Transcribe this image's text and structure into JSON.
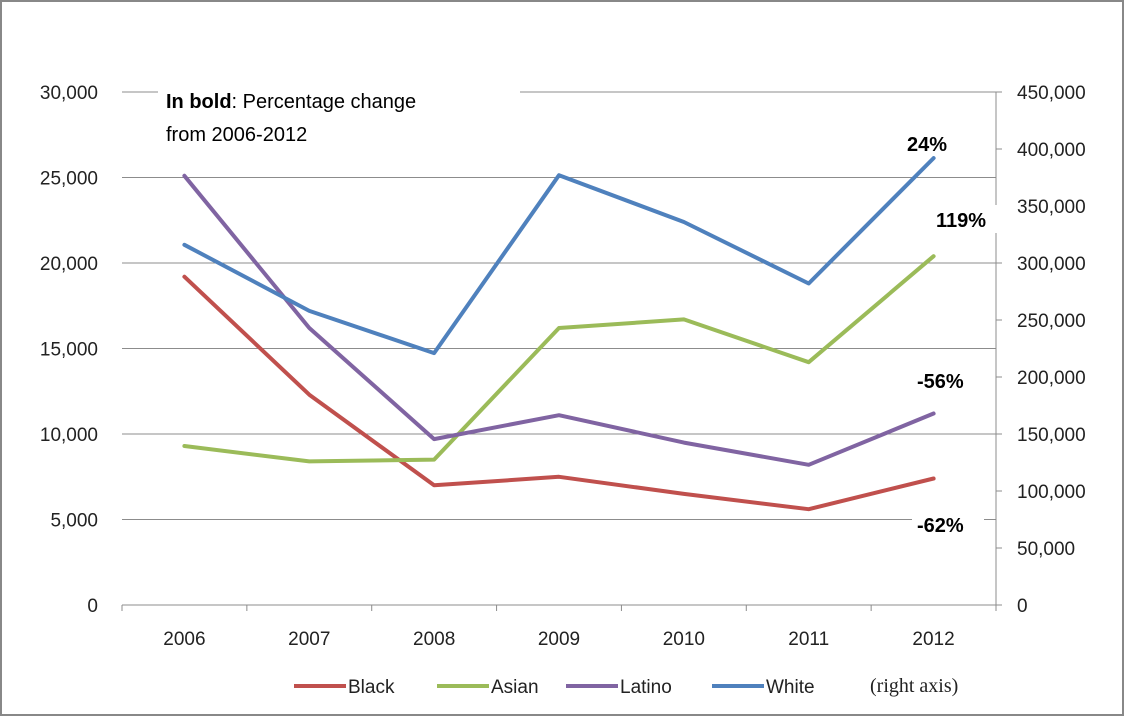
{
  "chart_data": {
    "type": "line",
    "categories": [
      "2006",
      "2007",
      "2008",
      "2009",
      "2010",
      "2011",
      "2012"
    ],
    "left_axis": {
      "ylim": [
        0,
        30000
      ],
      "ticks": [
        "0",
        "5,000",
        "10,000",
        "15,000",
        "20,000",
        "25,000",
        "30,000"
      ]
    },
    "right_axis": {
      "ylim": [
        0,
        450000
      ],
      "ticks": [
        "0",
        "50,000",
        "100,000",
        "150,000",
        "200,000",
        "250,000",
        "300,000",
        "350,000",
        "400,000",
        "450,000"
      ]
    },
    "series": [
      {
        "name": "Black",
        "axis": "left",
        "color": "#C0504D",
        "values": [
          19200,
          12300,
          7000,
          7500,
          6500,
          5600,
          7400
        ]
      },
      {
        "name": "Asian",
        "axis": "left",
        "color": "#9BBB59",
        "values": [
          9300,
          8400,
          8500,
          16200,
          16700,
          14200,
          20400
        ]
      },
      {
        "name": "Latino",
        "axis": "left",
        "color": "#8064A2",
        "values": [
          25100,
          16200,
          9700,
          11100,
          9500,
          8200,
          11200
        ]
      },
      {
        "name": "White",
        "axis": "right",
        "color": "#4F81BD",
        "values": [
          316000,
          258000,
          221000,
          377000,
          336000,
          282000,
          392000
        ]
      }
    ],
    "annotation": {
      "bold": "In bold",
      "line1_rest": ": Percentage change",
      "line2": "from 2006-2012"
    },
    "percent_labels": [
      "24%",
      "119%",
      "-56%",
      "-62%"
    ],
    "legend_suffix": "(right axis)",
    "grid": true,
    "legend_position": "bottom"
  }
}
